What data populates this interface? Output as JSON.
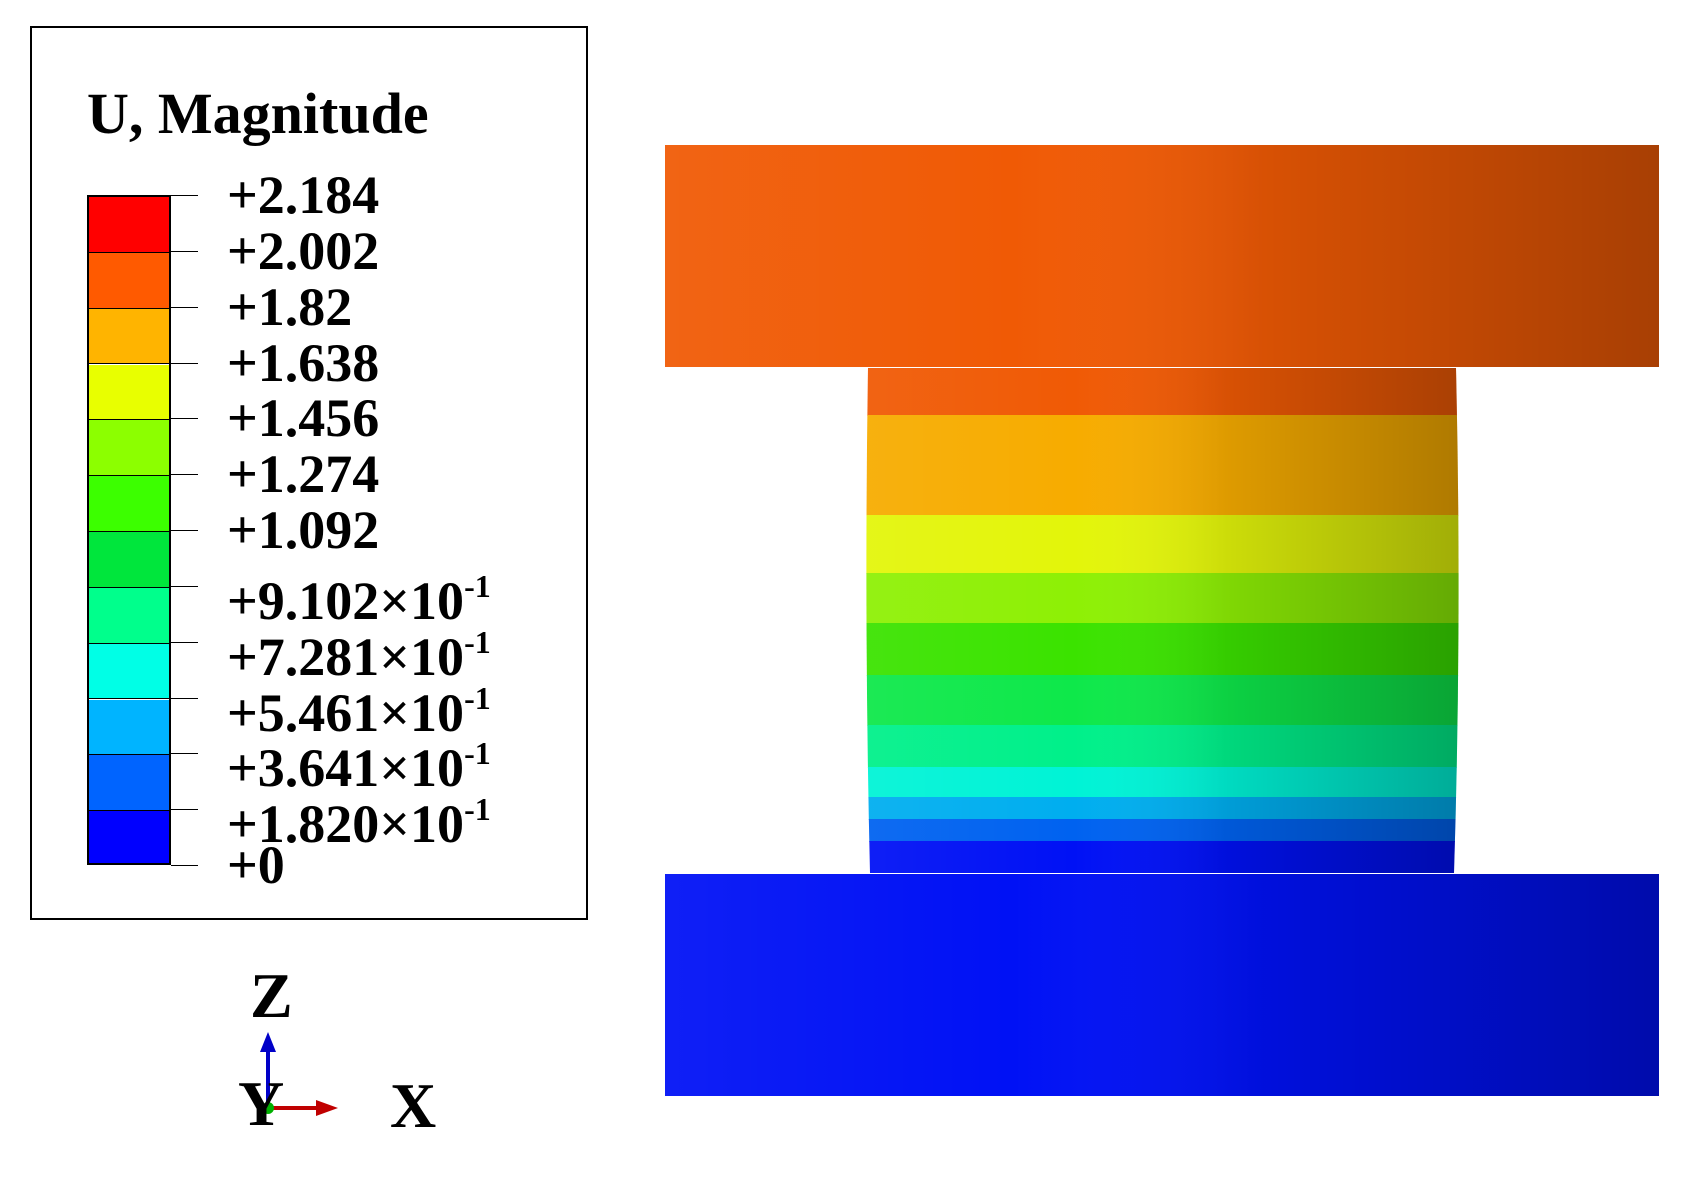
{
  "legend": {
    "title": "U, Magnitude",
    "levels": [
      {
        "label": "+2.184"
      },
      {
        "label": "+2.002"
      },
      {
        "label": "+1.82"
      },
      {
        "label": "+1.638"
      },
      {
        "label": "+1.456"
      },
      {
        "label": "+1.274"
      },
      {
        "label": "+1.092"
      },
      {
        "label": "+9.102",
        "suffix": "×10",
        "exp": "-1"
      },
      {
        "label": "+7.281",
        "suffix": "×10",
        "exp": "-1"
      },
      {
        "label": "+5.461",
        "suffix": "×10",
        "exp": "-1"
      },
      {
        "label": "+3.641",
        "suffix": "×10",
        "exp": "-1"
      },
      {
        "label": "+1.820",
        "suffix": "×10",
        "exp": "-1"
      },
      {
        "label": "+0"
      }
    ],
    "colors": [
      "#ff0000",
      "#ff5a00",
      "#ffb400",
      "#e8ff00",
      "#8cff00",
      "#3cff00",
      "#00e63c",
      "#00ff8c",
      "#00ffe6",
      "#00b4ff",
      "#0064ff",
      "#0000ff"
    ]
  },
  "triad": {
    "z_label": "Z",
    "y_label": "Y",
    "x_label": "X",
    "colors": {
      "x": "#c00000",
      "y": "#00b000",
      "z": "#0000c8"
    }
  },
  "model": {
    "top_plate_color": "#f05a05",
    "bottom_plate_color": "#0011f5",
    "core_band_colors": [
      "#f05a05",
      "#f7ac00",
      "#e3f50a",
      "#8ef005",
      "#3be300",
      "#0ee84a",
      "#00f08a",
      "#00f3d6",
      "#00aeef",
      "#0062f0",
      "#0011f5"
    ]
  }
}
